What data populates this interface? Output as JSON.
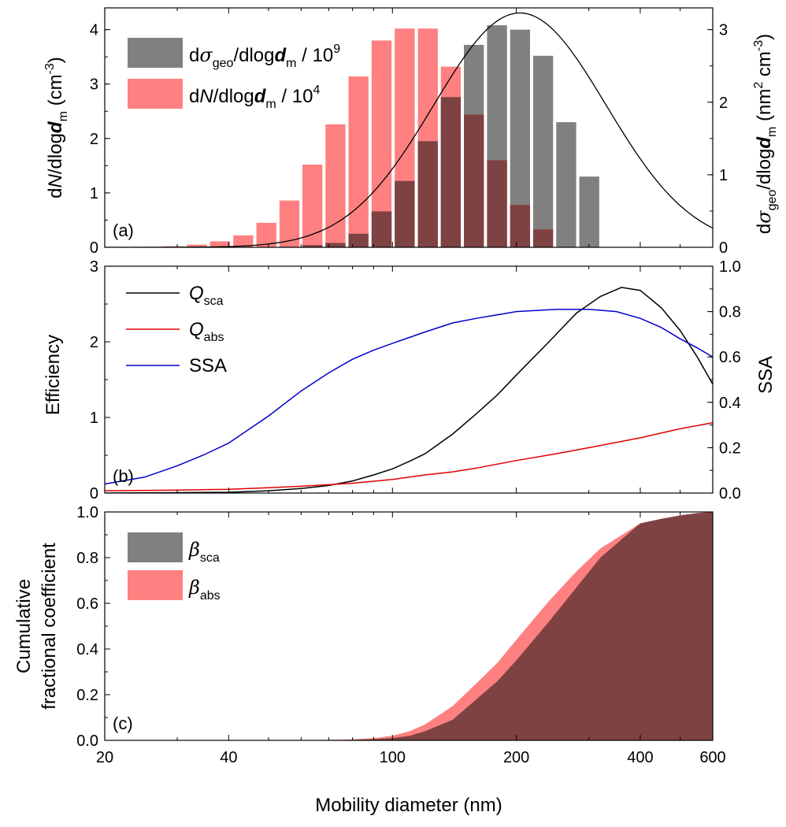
{
  "colors": {
    "sigma_bar": "#808080",
    "number_bar": "#ff8080",
    "overlap": "#7f4243",
    "q_sca": "#000000",
    "q_abs": "#e00000",
    "ssa": "#0000cc",
    "fit_curve": "#000000"
  },
  "x_axis": {
    "label": "Mobility diameter (nm)",
    "scale": "log",
    "range": [
      20,
      600
    ],
    "ticks": [
      20,
      40,
      100,
      200,
      400,
      600
    ],
    "tick_labels": [
      "20",
      "40",
      "100",
      "200",
      "400",
      "600"
    ]
  },
  "chart_data": [
    {
      "type": "bar",
      "panel_label": "(a)",
      "ylabel_left": "dN/dlogdm (cm-3)",
      "ylabel_right": "dσgeo/dlogdm (nm2 cm-3)",
      "ylim_left": [
        0,
        4.4
      ],
      "ylim_right": [
        0,
        3.3
      ],
      "yticks_left": [
        "0",
        "1",
        "2",
        "3",
        "4"
      ],
      "yticks_right": [
        "0",
        "1",
        "2",
        "3"
      ],
      "legend_position": "top-left",
      "bin_centers_nm": [
        25.9,
        29.5,
        33.5,
        38.1,
        43.4,
        49.4,
        56.2,
        63.9,
        72.7,
        82.7,
        94.1,
        107.1,
        121.9,
        138.6,
        157.7,
        179.5,
        204.2,
        232.3,
        264.3,
        300.7,
        342.1
      ],
      "series": [
        {
          "name": "dσgeo/dlogdm / 10^9",
          "values": [
            0,
            0,
            0,
            0,
            0,
            0,
            0.01,
            0.04,
            0.08,
            0.25,
            0.66,
            1.22,
            1.95,
            2.76,
            3.72,
            4.08,
            4.0,
            3.52,
            2.3,
            1.3,
            0
          ]
        },
        {
          "name": "dN/dlogdm / 10^4",
          "values": [
            0.01,
            0.02,
            0.05,
            0.11,
            0.22,
            0.45,
            0.86,
            1.52,
            2.26,
            3.14,
            3.8,
            4.02,
            4.02,
            3.32,
            2.44,
            1.6,
            0.78,
            0.33,
            0,
            0,
            0
          ]
        }
      ],
      "fit_curve": {
        "mode_nm": 204,
        "geometric_std": 1.62,
        "peak_right_axis": 3.23
      }
    },
    {
      "type": "line",
      "panel_label": "(b)",
      "ylabel_left": "Efficiency",
      "ylabel_right": "SSA",
      "ylim_left": [
        0,
        3
      ],
      "ylim_right": [
        0,
        1
      ],
      "yticks_left": [
        "0",
        "1",
        "2",
        "3"
      ],
      "yticks_right": [
        "0.0",
        "0.2",
        "0.4",
        "0.6",
        "0.8",
        "1.0"
      ],
      "legend_position": "top-left",
      "series": [
        {
          "name": "Qsca",
          "axis": "left",
          "x": [
            20,
            30,
            40,
            50,
            60,
            70,
            80,
            90,
            100,
            110,
            120,
            140,
            160,
            180,
            200,
            240,
            280,
            320,
            360,
            400,
            450,
            500,
            550,
            600
          ],
          "y": [
            0.0,
            0.005,
            0.01,
            0.03,
            0.06,
            0.1,
            0.16,
            0.24,
            0.32,
            0.42,
            0.52,
            0.78,
            1.05,
            1.3,
            1.56,
            2.0,
            2.38,
            2.6,
            2.72,
            2.68,
            2.45,
            2.15,
            1.8,
            1.44
          ]
        },
        {
          "name": "Qabs",
          "axis": "left",
          "x": [
            20,
            30,
            40,
            50,
            60,
            70,
            80,
            100,
            120,
            140,
            160,
            200,
            250,
            300,
            400,
            500,
            600
          ],
          "y": [
            0.03,
            0.04,
            0.05,
            0.07,
            0.09,
            0.11,
            0.13,
            0.18,
            0.24,
            0.28,
            0.33,
            0.43,
            0.52,
            0.6,
            0.73,
            0.85,
            0.93
          ]
        },
        {
          "name": "SSA",
          "axis": "right",
          "x": [
            20,
            25,
            30,
            35,
            40,
            50,
            60,
            70,
            80,
            90,
            100,
            120,
            140,
            160,
            200,
            250,
            300,
            350,
            400,
            450,
            500,
            550,
            600
          ],
          "y": [
            0.04,
            0.07,
            0.12,
            0.17,
            0.22,
            0.34,
            0.45,
            0.53,
            0.59,
            0.63,
            0.66,
            0.71,
            0.75,
            0.77,
            0.8,
            0.81,
            0.81,
            0.8,
            0.77,
            0.73,
            0.68,
            0.64,
            0.6
          ]
        }
      ]
    },
    {
      "type": "area",
      "panel_label": "(c)",
      "ylabel": "Cumulative fractional coefficient",
      "ylabel_lines": [
        "Cumulative",
        "fractional coefficient"
      ],
      "ylim": [
        0,
        1
      ],
      "yticks": [
        "0.0",
        "0.2",
        "0.4",
        "0.6",
        "0.8",
        "1.0"
      ],
      "legend_position": "top-left",
      "series": [
        {
          "name": "βsca",
          "x": [
            20,
            60,
            80,
            90,
            100,
            110,
            120,
            140,
            160,
            180,
            200,
            240,
            280,
            320,
            400,
            450,
            500,
            550,
            600
          ],
          "y": [
            0,
            0,
            0.002,
            0.005,
            0.01,
            0.02,
            0.04,
            0.09,
            0.18,
            0.26,
            0.35,
            0.52,
            0.67,
            0.8,
            0.95,
            0.97,
            0.985,
            0.995,
            1.0
          ]
        },
        {
          "name": "βabs",
          "x": [
            20,
            60,
            80,
            90,
            100,
            110,
            120,
            140,
            160,
            180,
            200,
            240,
            280,
            320,
            400,
            450,
            500,
            550,
            600
          ],
          "y": [
            0,
            0,
            0.004,
            0.01,
            0.02,
            0.04,
            0.07,
            0.15,
            0.25,
            0.34,
            0.44,
            0.61,
            0.74,
            0.84,
            0.95,
            0.97,
            0.985,
            0.995,
            1.0
          ]
        }
      ]
    }
  ]
}
